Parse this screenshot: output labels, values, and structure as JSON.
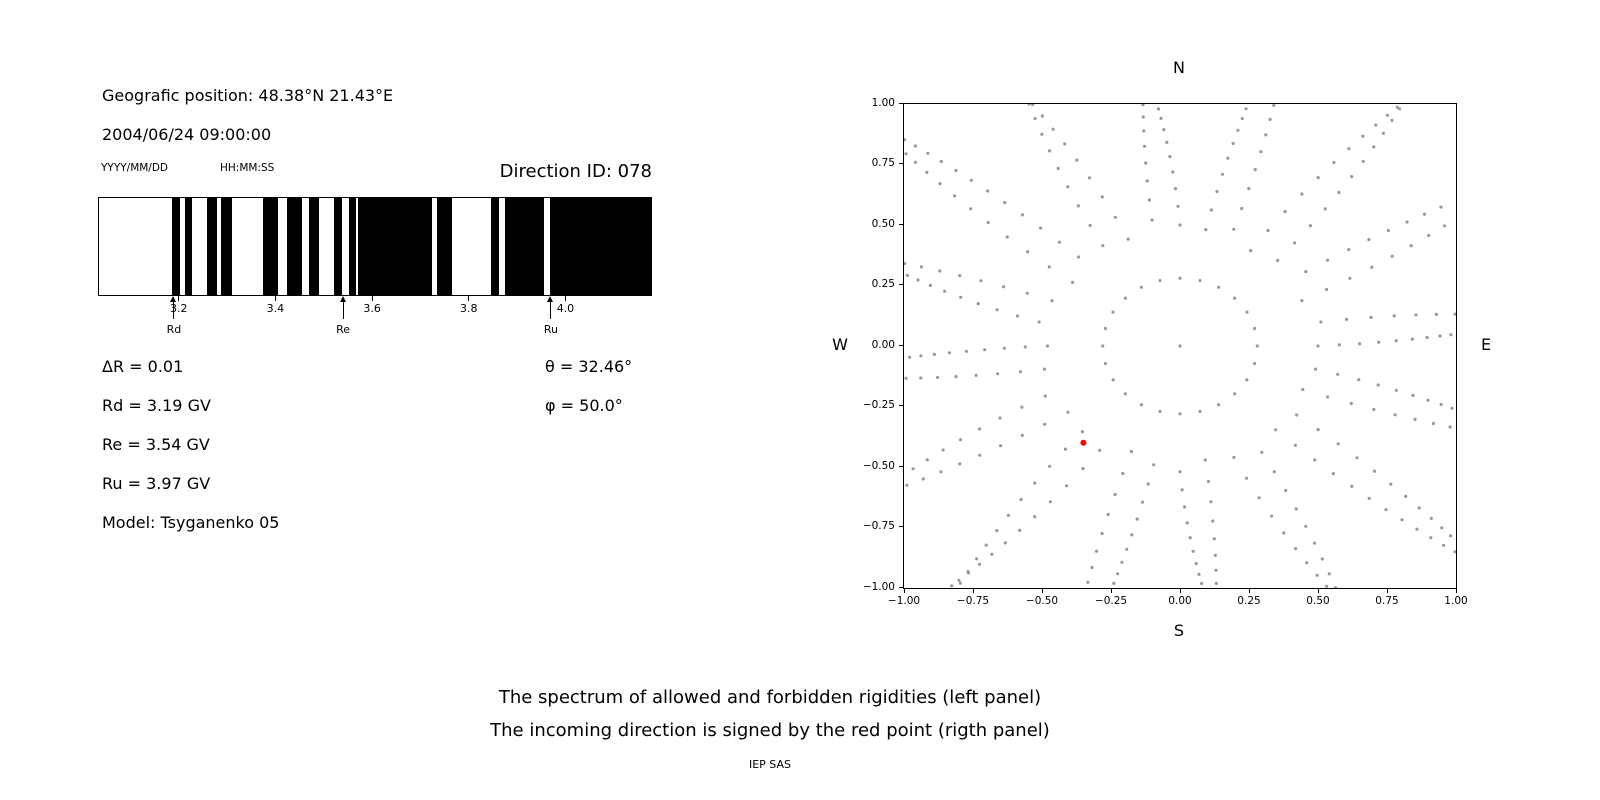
{
  "left_panel": {
    "geo_position": "Geografic position: 48.38°N 21.43°E",
    "datetime": "2004/06/24 09:00:00",
    "date_format": "YYYY/MM/DD",
    "time_format": "HH:MM:SS",
    "direction_id": "Direction ID: 078",
    "delta_r": "ΔR = 0.01",
    "theta": "θ = 32.46°",
    "phi": "φ = 50.0°",
    "rd": "Rd = 3.19 GV",
    "re": "Re = 3.54 GV",
    "ru": "Ru = 3.97 GV",
    "model": "Model: Tsyganenko 05"
  },
  "captions": {
    "line1": "The spectrum of allowed and forbidden rigidities (left panel)",
    "line2": "The incoming direction is signed by the red point (rigth panel)",
    "credit": "IEP SAS"
  },
  "chart_data": [
    {
      "type": "bar",
      "description": "Barcode spectrum of allowed (black) and forbidden (white) rigidities in GV",
      "x_range_gv": [
        3.035,
        4.177
      ],
      "x_ticks": [
        {
          "value": 3.2,
          "label": "3.2"
        },
        {
          "value": 3.4,
          "label": "3.4"
        },
        {
          "value": 3.6,
          "label": "3.6"
        },
        {
          "value": 3.8,
          "label": "3.8"
        },
        {
          "value": 4.0,
          "label": "4.0"
        }
      ],
      "black_bands_gv": [
        [
          3.187,
          3.203
        ],
        [
          3.212,
          3.227
        ],
        [
          3.259,
          3.279
        ],
        [
          3.288,
          3.311
        ],
        [
          3.374,
          3.405
        ],
        [
          3.423,
          3.455
        ],
        [
          3.469,
          3.491
        ],
        [
          3.522,
          3.538
        ],
        [
          3.552,
          3.567
        ],
        [
          3.571,
          3.723
        ],
        [
          3.734,
          3.766
        ],
        [
          3.846,
          3.862
        ],
        [
          3.874,
          3.955
        ],
        [
          3.969,
          4.177
        ]
      ],
      "cutoff_markers": [
        {
          "x": 3.19,
          "label": "Rd"
        },
        {
          "x": 3.54,
          "label": "Re"
        },
        {
          "x": 3.97,
          "label": "Ru"
        }
      ],
      "delta_r_gv": 0.01,
      "rd_gv": 3.19,
      "re_gv": 3.54,
      "ru_gv": 3.97,
      "model": "Tsyganenko 05"
    },
    {
      "type": "scatter",
      "description": "Incoming direction map; gray dots are trajectory directions, red dot is the incoming direction",
      "xlim": [
        -1,
        1
      ],
      "ylim": [
        -1,
        1
      ],
      "x_ticks": [
        {
          "value": -1.0,
          "label": "−1.00"
        },
        {
          "value": -0.75,
          "label": "−0.75"
        },
        {
          "value": -0.5,
          "label": "−0.50"
        },
        {
          "value": -0.25,
          "label": "−0.25"
        },
        {
          "value": 0.0,
          "label": "0.00"
        },
        {
          "value": 0.25,
          "label": "0.25"
        },
        {
          "value": 0.5,
          "label": "0.50"
        },
        {
          "value": 0.75,
          "label": "0.75"
        },
        {
          "value": 1.0,
          "label": "1.00"
        }
      ],
      "y_ticks": [
        {
          "value": 1.0,
          "label": "1.00"
        },
        {
          "value": 0.75,
          "label": "0.75"
        },
        {
          "value": 0.5,
          "label": "0.50"
        },
        {
          "value": 0.25,
          "label": "0.25"
        },
        {
          "value": 0.0,
          "label": "0.00"
        },
        {
          "value": -0.25,
          "label": "−0.25"
        },
        {
          "value": -0.5,
          "label": "−0.50"
        },
        {
          "value": -0.75,
          "label": "−0.75"
        },
        {
          "value": -1.0,
          "label": "−1.00"
        }
      ],
      "compass": {
        "top": "N",
        "bottom": "S",
        "left": "W",
        "right": "E"
      },
      "dot_color": "#999999",
      "red_point": {
        "x": -0.35,
        "y": -0.4,
        "color": "#ff0000"
      },
      "theta_deg": 32.46,
      "phi_deg": 50.0,
      "inner_ring": {
        "r": 0.28,
        "n": 24
      },
      "center_dot": true,
      "spokes": [
        {
          "a": 0,
          "r0": 0.5,
          "r1": 1.03,
          "n": 11,
          "d": 3
        },
        {
          "a": 11,
          "r0": 0.52,
          "r1": 1.22,
          "n": 12,
          "d": -5
        },
        {
          "a": 23,
          "r0": 0.48,
          "r1": 1.3,
          "n": 13,
          "d": 6
        },
        {
          "a": 34,
          "r0": 0.55,
          "r1": 1.36,
          "n": 14,
          "d": -4
        },
        {
          "a": 45,
          "r0": 0.5,
          "r1": 1.4,
          "n": 15,
          "d": 7
        },
        {
          "a": 57,
          "r0": 0.47,
          "r1": 1.32,
          "n": 13,
          "d": -6
        },
        {
          "a": 68,
          "r0": 0.52,
          "r1": 1.2,
          "n": 12,
          "d": 4
        },
        {
          "a": 79,
          "r0": 0.49,
          "r1": 1.06,
          "n": 11,
          "d": -3
        },
        {
          "a": 90,
          "r0": 0.5,
          "r1": 1.03,
          "n": 11,
          "d": 5
        },
        {
          "a": 101,
          "r0": 0.53,
          "r1": 1.1,
          "n": 11,
          "d": -4
        },
        {
          "a": 113,
          "r0": 0.48,
          "r1": 1.24,
          "n": 12,
          "d": 6
        },
        {
          "a": 124,
          "r0": 0.5,
          "r1": 1.34,
          "n": 14,
          "d": -7
        },
        {
          "a": 135,
          "r0": 0.52,
          "r1": 1.4,
          "n": 15,
          "d": 5
        },
        {
          "a": 146,
          "r0": 0.47,
          "r1": 1.33,
          "n": 13,
          "d": -5
        },
        {
          "a": 158,
          "r0": 0.5,
          "r1": 1.21,
          "n": 12,
          "d": 4
        },
        {
          "a": 169,
          "r0": 0.52,
          "r1": 1.08,
          "n": 11,
          "d": -6
        },
        {
          "a": 180,
          "r0": 0.48,
          "r1": 1.03,
          "n": 11,
          "d": 3
        },
        {
          "a": 191,
          "r0": 0.5,
          "r1": 1.1,
          "n": 11,
          "d": -4
        },
        {
          "a": 203,
          "r0": 0.53,
          "r1": 1.25,
          "n": 12,
          "d": 6
        },
        {
          "a": 214,
          "r0": 0.49,
          "r1": 1.35,
          "n": 14,
          "d": -5
        },
        {
          "a": 225,
          "r0": 0.5,
          "r1": 1.4,
          "n": 15,
          "d": 7
        },
        {
          "a": 236,
          "r0": 0.52,
          "r1": 1.31,
          "n": 13,
          "d": -6
        },
        {
          "a": 248,
          "r0": 0.47,
          "r1": 1.19,
          "n": 12,
          "d": 4
        },
        {
          "a": 259,
          "r0": 0.5,
          "r1": 1.06,
          "n": 11,
          "d": -3
        },
        {
          "a": 270,
          "r0": 0.52,
          "r1": 1.03,
          "n": 11,
          "d": 5
        },
        {
          "a": 281,
          "r0": 0.48,
          "r1": 1.09,
          "n": 11,
          "d": -4
        },
        {
          "a": 293,
          "r0": 0.5,
          "r1": 1.23,
          "n": 12,
          "d": 6
        },
        {
          "a": 304,
          "r0": 0.53,
          "r1": 1.34,
          "n": 14,
          "d": -6
        },
        {
          "a": 315,
          "r0": 0.49,
          "r1": 1.4,
          "n": 15,
          "d": 5
        },
        {
          "a": 326,
          "r0": 0.51,
          "r1": 1.31,
          "n": 13,
          "d": -5
        },
        {
          "a": 338,
          "r0": 0.48,
          "r1": 1.19,
          "n": 12,
          "d": 4
        },
        {
          "a": 349,
          "r0": 0.5,
          "r1": 1.07,
          "n": 11,
          "d": -4
        }
      ]
    }
  ]
}
